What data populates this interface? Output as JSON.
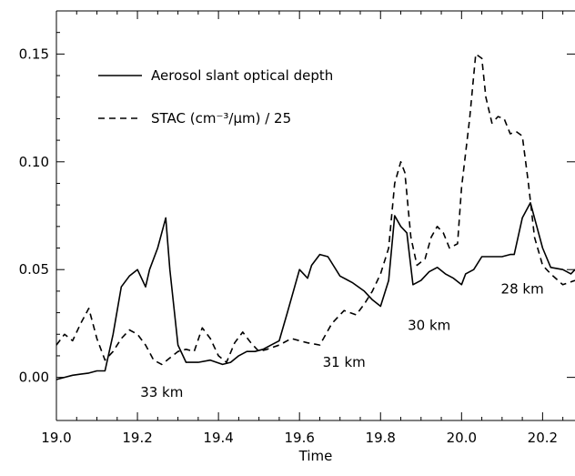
{
  "chart_data": {
    "type": "line",
    "title": "",
    "xlabel": "Time",
    "ylabel": "",
    "xlim": [
      19.0,
      20.28
    ],
    "ylim": [
      -0.02,
      0.17
    ],
    "x_ticks": [
      19.0,
      19.2,
      19.4,
      19.6,
      19.8,
      20.0,
      20.2
    ],
    "x_tick_labels": [
      "19.0",
      "19.2",
      "19.4",
      "19.6",
      "19.8",
      "20.0",
      "20.2"
    ],
    "y_ticks": [
      0.0,
      0.05,
      0.1,
      0.15
    ],
    "y_tick_labels": [
      "0.00",
      "0.05",
      "0.10",
      "0.15"
    ],
    "grid": false,
    "legend_position": "top-left",
    "series": [
      {
        "name": "Aerosol slant optical depth",
        "style": "solid",
        "color": "#000000",
        "x": [
          19.0,
          19.02,
          19.04,
          19.06,
          19.08,
          19.1,
          19.12,
          19.14,
          19.16,
          19.18,
          19.2,
          19.22,
          19.23,
          19.25,
          19.27,
          19.28,
          19.3,
          19.32,
          19.35,
          19.38,
          19.41,
          19.43,
          19.45,
          19.47,
          19.49,
          19.51,
          19.53,
          19.55,
          19.57,
          19.6,
          19.62,
          19.63,
          19.65,
          19.67,
          19.7,
          19.73,
          19.76,
          19.78,
          19.8,
          19.82,
          19.835,
          19.85,
          19.865,
          19.88,
          19.9,
          19.92,
          19.94,
          19.96,
          19.98,
          20.0,
          20.01,
          20.03,
          20.05,
          20.07,
          20.1,
          20.12,
          20.13,
          20.15,
          20.17,
          20.2,
          20.22,
          20.25,
          20.27,
          20.28
        ],
        "y": [
          -0.001,
          0.0,
          0.001,
          0.0015,
          0.002,
          0.003,
          0.003,
          0.02,
          0.042,
          0.047,
          0.05,
          0.042,
          0.05,
          0.06,
          0.074,
          0.05,
          0.015,
          0.007,
          0.007,
          0.008,
          0.006,
          0.007,
          0.01,
          0.012,
          0.012,
          0.013,
          0.015,
          0.017,
          0.03,
          0.05,
          0.046,
          0.052,
          0.057,
          0.056,
          0.047,
          0.044,
          0.04,
          0.036,
          0.033,
          0.045,
          0.075,
          0.07,
          0.067,
          0.043,
          0.045,
          0.049,
          0.051,
          0.048,
          0.046,
          0.043,
          0.048,
          0.05,
          0.056,
          0.056,
          0.056,
          0.057,
          0.057,
          0.074,
          0.081,
          0.06,
          0.051,
          0.05,
          0.048,
          0.05
        ]
      },
      {
        "name": "STAC (cm⁻³/μm) / 25",
        "style": "dashed",
        "color": "#000000",
        "x": [
          19.0,
          19.02,
          19.04,
          19.06,
          19.08,
          19.1,
          19.12,
          19.14,
          19.16,
          19.18,
          19.2,
          19.22,
          19.24,
          19.26,
          19.28,
          19.3,
          19.32,
          19.34,
          19.36,
          19.38,
          19.4,
          19.42,
          19.44,
          19.46,
          19.48,
          19.5,
          19.52,
          19.55,
          19.58,
          19.62,
          19.65,
          19.68,
          19.71,
          19.74,
          19.76,
          19.78,
          19.8,
          19.82,
          19.835,
          19.85,
          19.86,
          19.875,
          19.89,
          19.91,
          19.925,
          19.94,
          19.955,
          19.97,
          19.99,
          20.0,
          20.02,
          20.035,
          20.05,
          20.06,
          20.075,
          20.09,
          20.105,
          20.12,
          20.135,
          20.15,
          20.165,
          20.18,
          20.2,
          20.22,
          20.25,
          20.28
        ],
        "y": [
          0.015,
          0.02,
          0.017,
          0.025,
          0.032,
          0.018,
          0.008,
          0.012,
          0.018,
          0.022,
          0.02,
          0.015,
          0.008,
          0.006,
          0.009,
          0.012,
          0.013,
          0.012,
          0.023,
          0.018,
          0.01,
          0.007,
          0.016,
          0.021,
          0.016,
          0.012,
          0.013,
          0.015,
          0.018,
          0.016,
          0.015,
          0.025,
          0.031,
          0.029,
          0.034,
          0.04,
          0.048,
          0.06,
          0.09,
          0.1,
          0.095,
          0.065,
          0.052,
          0.055,
          0.065,
          0.07,
          0.067,
          0.06,
          0.062,
          0.088,
          0.12,
          0.15,
          0.148,
          0.13,
          0.118,
          0.121,
          0.12,
          0.113,
          0.114,
          0.112,
          0.09,
          0.065,
          0.052,
          0.048,
          0.043,
          0.045
        ]
      }
    ],
    "annotations": [
      {
        "text": "33 km",
        "x": 19.26,
        "y": -0.009
      },
      {
        "text": "31 km",
        "x": 19.71,
        "y": 0.005
      },
      {
        "text": "30 km",
        "x": 19.92,
        "y": 0.022
      },
      {
        "text": "28 km",
        "x": 20.15,
        "y": 0.039
      }
    ]
  }
}
